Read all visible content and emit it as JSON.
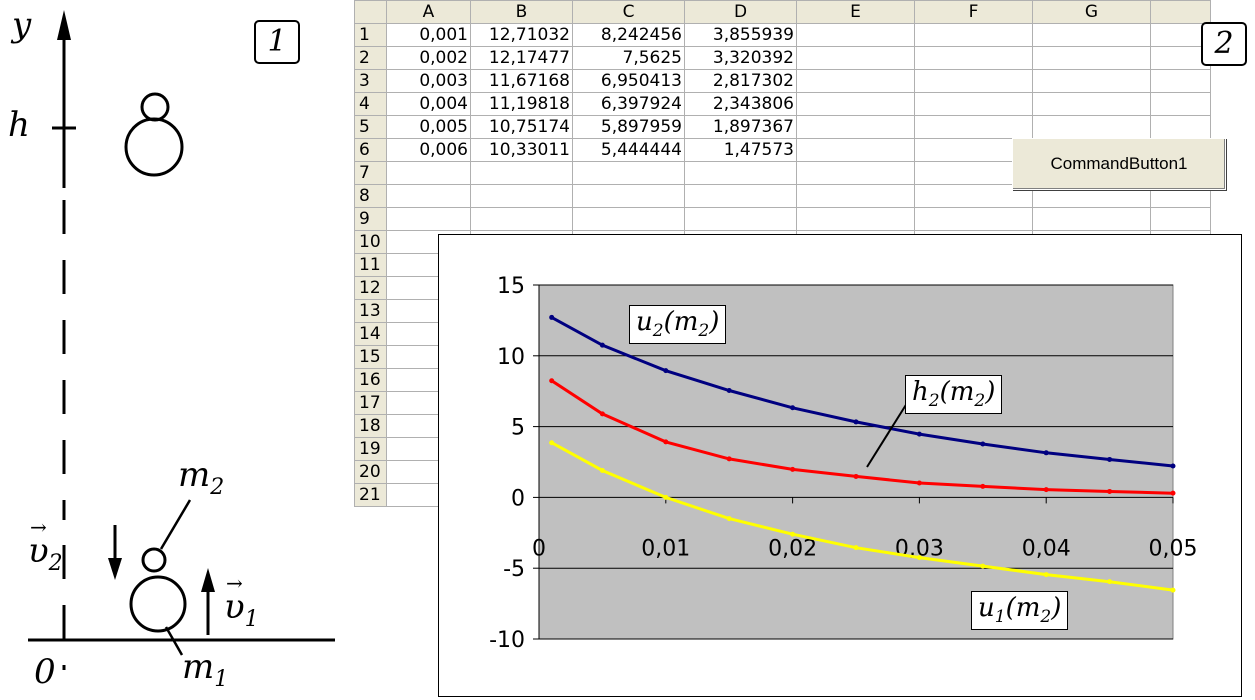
{
  "figure1": {
    "box_label": "1",
    "axis_y": "y",
    "height_label": "h",
    "origin_label": "0",
    "m2": "m",
    "m2_sub": "2",
    "m1": "m",
    "m1_sub": "1",
    "v2": "υ",
    "v2_sub": "2",
    "v1": "υ",
    "v1_sub": "1"
  },
  "spreadsheet": {
    "box_label": "2",
    "columns": [
      "A",
      "B",
      "C",
      "D",
      "E",
      "F",
      "G"
    ],
    "rows": [
      {
        "n": "1",
        "a": "0,001",
        "b": "12,71032",
        "c": "8,242456",
        "d": "3,855939"
      },
      {
        "n": "2",
        "a": "0,002",
        "b": "12,17477",
        "c": "7,5625",
        "d": "3,320392"
      },
      {
        "n": "3",
        "a": "0,003",
        "b": "11,67168",
        "c": "6,950413",
        "d": "2,817302"
      },
      {
        "n": "4",
        "a": "0,004",
        "b": "11,19818",
        "c": "6,397924",
        "d": "2,343806"
      },
      {
        "n": "5",
        "a": "0,005",
        "b": "10,75174",
        "c": "5,897959",
        "d": "1,897367"
      },
      {
        "n": "6",
        "a": "0,006",
        "b": "10,33011",
        "c": "5,444444",
        "d": "1,47573"
      },
      {
        "n": "7"
      },
      {
        "n": "8"
      },
      {
        "n": "9"
      },
      {
        "n": "10"
      },
      {
        "n": "11"
      },
      {
        "n": "12"
      },
      {
        "n": "13"
      },
      {
        "n": "14"
      },
      {
        "n": "15"
      },
      {
        "n": "16"
      },
      {
        "n": "17"
      },
      {
        "n": "18"
      },
      {
        "n": "19"
      },
      {
        "n": "20"
      },
      {
        "n": "21"
      }
    ],
    "command_button": "CommandButton1"
  },
  "chart_data": {
    "type": "line",
    "title": "",
    "xlabel": "",
    "ylabel": "",
    "xlim": [
      0,
      0.05
    ],
    "ylim": [
      -10,
      15
    ],
    "x_ticks": [
      "0",
      "0,01",
      "0,02",
      "0,03",
      "0,04",
      "0,05"
    ],
    "y_ticks": [
      "15",
      "10",
      "5",
      "0",
      "-5",
      "-10"
    ],
    "grid": true,
    "plot_background": "#c0c0c0",
    "series": [
      {
        "name": "u2(m2)",
        "label_main": "u",
        "label_sub1": "2",
        "label_sub2": "2",
        "color": "#000080",
        "x": [
          0.001,
          0.005,
          0.01,
          0.015,
          0.02,
          0.025,
          0.03,
          0.035,
          0.04,
          0.045,
          0.05
        ],
        "values": [
          12.71,
          10.75,
          8.95,
          7.55,
          6.33,
          5.33,
          4.47,
          3.77,
          3.15,
          2.68,
          2.22
        ]
      },
      {
        "name": "h2(m2)",
        "label_main": "h",
        "label_sub1": "2",
        "label_sub2": "2",
        "color": "#ff0000",
        "x": [
          0.001,
          0.005,
          0.01,
          0.015,
          0.02,
          0.025,
          0.03,
          0.035,
          0.04,
          0.045,
          0.05
        ],
        "values": [
          8.24,
          5.9,
          3.92,
          2.72,
          1.98,
          1.48,
          1.02,
          0.78,
          0.55,
          0.42,
          0.3
        ]
      },
      {
        "name": "u1(m2)",
        "label_main": "u",
        "label_sub1": "1",
        "label_sub2": "2",
        "color": "#ffff00",
        "x": [
          0.001,
          0.005,
          0.01,
          0.015,
          0.02,
          0.025,
          0.03,
          0.035,
          0.04,
          0.045,
          0.05
        ],
        "values": [
          3.86,
          1.9,
          0.0,
          -1.5,
          -2.6,
          -3.55,
          -4.25,
          -4.85,
          -5.45,
          -5.95,
          -6.55
        ]
      }
    ]
  }
}
